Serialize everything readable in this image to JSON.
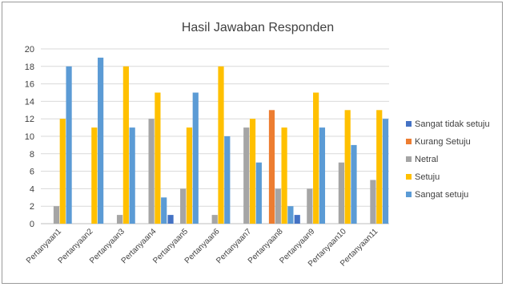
{
  "chart_data": {
    "type": "bar",
    "title": "Hasil Jawaban Responden",
    "categories": [
      "Pertanyaan1",
      "Pertanyaan2",
      "Pertanyaan3",
      "Pertanyaan4",
      "Pertanyaan5",
      "Pertanyaan6",
      "Pertanyaan7",
      "Pertanyaan8",
      "Pertanyaan9",
      "Pertanyaan10",
      "Pertanyaan11"
    ],
    "series": [
      {
        "name": "Sangat tidak setuju",
        "color": "#4472C4",
        "values": [
          0,
          0,
          0,
          0,
          1,
          0,
          0,
          0,
          1,
          0,
          0
        ]
      },
      {
        "name": "Kurang Setuju",
        "color": "#ED7D31",
        "values": [
          0,
          0,
          0,
          0,
          0,
          0,
          0,
          13,
          0,
          0,
          0
        ]
      },
      {
        "name": "Netral",
        "color": "#A5A5A5",
        "values": [
          2,
          0,
          1,
          12,
          4,
          1,
          11,
          4,
          4,
          7,
          5
        ]
      },
      {
        "name": "Setuju",
        "color": "#FFC000",
        "values": [
          12,
          11,
          18,
          15,
          11,
          18,
          12,
          11,
          15,
          13,
          13
        ]
      },
      {
        "name": "Sangat setuju",
        "color": "#5B9BD5",
        "values": [
          18,
          19,
          11,
          3,
          15,
          10,
          7,
          2,
          11,
          9,
          12
        ]
      }
    ],
    "ylim": [
      0,
      20
    ],
    "yticks": [
      "0",
      "2",
      "4",
      "6",
      "8",
      "10",
      "12",
      "14",
      "16",
      "18",
      "20"
    ],
    "grid": true,
    "legend_position": "right",
    "xlabel": "",
    "ylabel": ""
  }
}
